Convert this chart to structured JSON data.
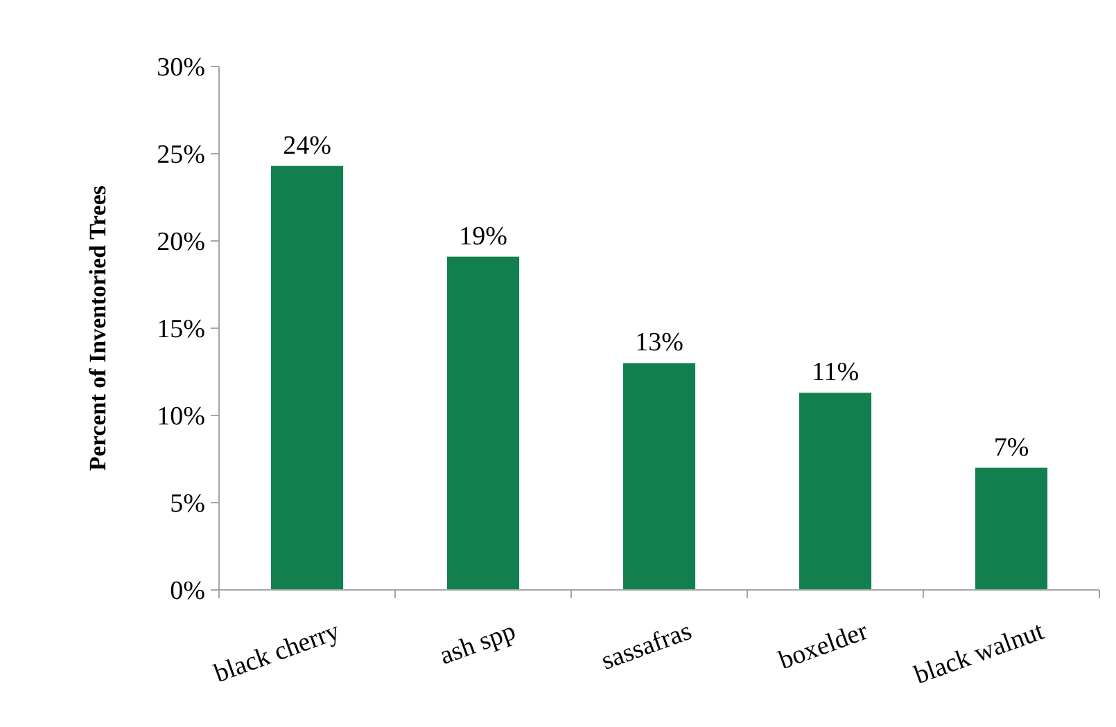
{
  "chart_data": {
    "type": "bar",
    "ylabel": "Percent of Inventoried Trees",
    "categories": [
      "black cherry",
      "ash spp",
      "sassafras",
      "boxelder",
      "black walnut"
    ],
    "values": [
      24.3,
      19.1,
      13.0,
      11.3,
      7.0
    ],
    "value_labels": [
      "24%",
      "19%",
      "13%",
      "11%",
      "7%"
    ],
    "color": "#12804e",
    "ylim": [
      0,
      30
    ],
    "yticks": [
      {
        "value": 0,
        "label": "0%"
      },
      {
        "value": 5,
        "label": "5%"
      },
      {
        "value": 10,
        "label": "10%"
      },
      {
        "value": 15,
        "label": "15%"
      },
      {
        "value": 20,
        "label": "20%"
      },
      {
        "value": 25,
        "label": "25%"
      },
      {
        "value": 30,
        "label": "30%"
      }
    ],
    "grid": false
  }
}
